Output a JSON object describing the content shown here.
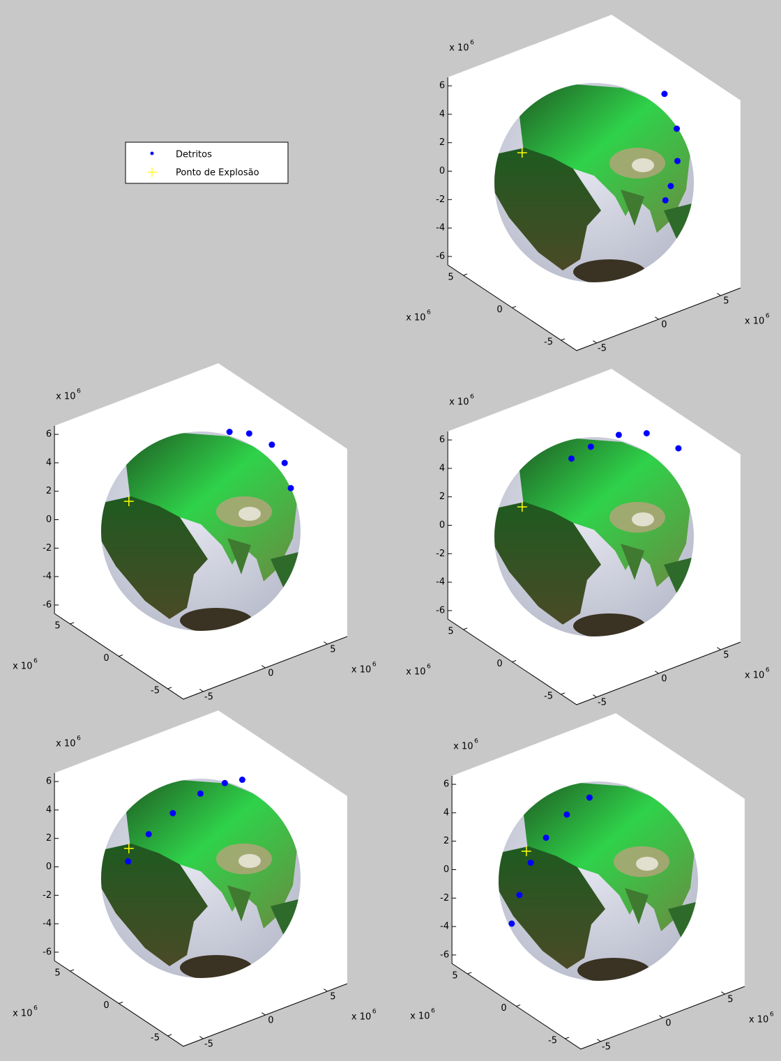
{
  "chart_data": [
    {
      "type": "scatter3d",
      "legend": "west",
      "xlim": [
        -6.6,
        6.6
      ],
      "ylim": [
        -6.6,
        6.6
      ],
      "zlim": [
        -6.6,
        6.6
      ],
      "xticks": [
        -5,
        0,
        5
      ],
      "yticks": [
        -5,
        0,
        5
      ],
      "zticks": [
        -6,
        -4,
        -2,
        0,
        2,
        4,
        6
      ],
      "axis_multiplier": {
        "text": "x 10",
        "power": 6
      },
      "series": [
        {
          "name": "Detritos",
          "color": "#0000ff",
          "marker": "dot",
          "x": [
            5.19,
            4.08,
            2.6,
            1.37,
            0.71
          ],
          "y": [
            -0.61,
            -3.28,
            -5.23,
            -6.11,
            -6.4
          ],
          "z": [
            4.79,
            3.93,
            3.04,
            2.09,
            1.44
          ]
        },
        {
          "name": "Ponto de Explosão",
          "color": "#ffff00",
          "marker": "plus",
          "x": [
            -5.31
          ],
          "y": [
            0.62
          ],
          "z": [
            3.59
          ]
        }
      ]
    },
    {
      "type": "scatter3d",
      "xlim": [
        -6.6,
        6.6
      ],
      "ylim": [
        -6.6,
        6.6
      ],
      "zlim": [
        -6.6,
        6.6
      ],
      "xticks": [
        -5,
        0,
        5
      ],
      "yticks": [
        -5,
        0,
        5
      ],
      "zticks": [
        -6,
        -4,
        -2,
        0,
        2,
        4,
        6
      ],
      "axis_multiplier": {
        "text": "x 10",
        "power": 6
      },
      "series": [
        {
          "name": "Detritos",
          "color": "#0000ff",
          "marker": "dot",
          "x": [
            2.47,
            4.25,
            5.18,
            5.48,
            4.34
          ],
          "y": [
            0.2,
            0.45,
            -0.69,
            -1.62,
            -3.7
          ],
          "z": [
            6.07,
            5.25,
            4.67,
            3.71,
            3.27
          ]
        },
        {
          "name": "Ponto de Explosão",
          "color": "#ffff00",
          "marker": "plus",
          "x": [
            -5.31
          ],
          "y": [
            0.62
          ],
          "z": [
            3.59
          ]
        }
      ]
    },
    {
      "type": "scatter3d",
      "xlim": [
        -6.6,
        6.6
      ],
      "ylim": [
        -6.6,
        6.6
      ],
      "zlim": [
        -6.6,
        6.6
      ],
      "xticks": [
        -5,
        0,
        5
      ],
      "yticks": [
        -5,
        0,
        5
      ],
      "zticks": [
        -6,
        -4,
        -2,
        0,
        2,
        4,
        6
      ],
      "axis_multiplier": {
        "text": "x 10",
        "power": 6
      },
      "series": [
        {
          "name": "Detritos",
          "color": "#0000ff",
          "marker": "dot",
          "x": [
            -2.07,
            -0.43,
            2.46,
            4.57,
            5.88
          ],
          "y": [
            -0.31,
            -0.21,
            0.6,
            0.43,
            -1.16
          ],
          "z": [
            6.33,
            6.57,
            6.07,
            5.56,
            4.79
          ]
        },
        {
          "name": "Ponto de Explosão",
          "color": "#ffff00",
          "marker": "plus",
          "x": [
            -5.31
          ],
          "y": [
            0.62
          ],
          "z": [
            3.59
          ]
        }
      ]
    },
    {
      "type": "scatter3d",
      "xlim": [
        -6.6,
        6.6
      ],
      "ylim": [
        -6.6,
        6.6
      ],
      "zlim": [
        -6.6,
        6.6
      ],
      "xticks": [
        -5,
        0,
        5
      ],
      "yticks": [
        -5,
        0,
        5
      ],
      "zticks": [
        -6,
        -4,
        -2,
        0,
        2,
        4,
        6
      ],
      "axis_multiplier": {
        "text": "x 10",
        "power": 6
      },
      "series": [
        {
          "name": "Detritos",
          "color": "#0000ff",
          "marker": "dot",
          "x": [
            -5.84,
            -4.5,
            -2.86,
            -0.62,
            1.6,
            3.92
          ],
          "y": [
            0.02,
            -0.38,
            -0.77,
            -0.75,
            -0.42,
            0.74
          ],
          "z": [
            3.13,
            4.78,
            5.89,
            6.51,
            6.36,
            5.29
          ]
        },
        {
          "name": "Ponto de Explosão",
          "color": "#ffff00",
          "marker": "plus",
          "x": [
            -5.31
          ],
          "y": [
            0.62
          ],
          "z": [
            3.59
          ]
        }
      ]
    },
    {
      "type": "scatter3d",
      "xlim": [
        -6.6,
        6.6
      ],
      "ylim": [
        -6.6,
        6.6
      ],
      "zlim": [
        -6.6,
        6.6
      ],
      "xticks": [
        -5,
        0,
        5
      ],
      "yticks": [
        -5,
        0,
        5
      ],
      "zticks": [
        -6,
        -4,
        -2,
        0,
        2,
        4,
        6
      ],
      "axis_multiplier": {
        "text": "x 10",
        "power": 6
      },
      "series": [
        {
          "name": "Detritos",
          "color": "#0000ff",
          "marker": "dot",
          "x": [
            -6.45,
            -6.48,
            -5.72,
            -4.53,
            -2.92,
            -1.11
          ],
          "y": [
            0.67,
            -0.16,
            -0.35,
            -0.41,
            -0.49,
            -0.51
          ],
          "z": [
            -1.14,
            1.26,
            3.36,
            4.75,
            5.88,
            6.48
          ]
        },
        {
          "name": "Ponto de Explosão",
          "color": "#ffff00",
          "marker": "plus",
          "x": [
            -5.31
          ],
          "y": [
            0.62
          ],
          "z": [
            3.59
          ]
        }
      ]
    }
  ]
}
